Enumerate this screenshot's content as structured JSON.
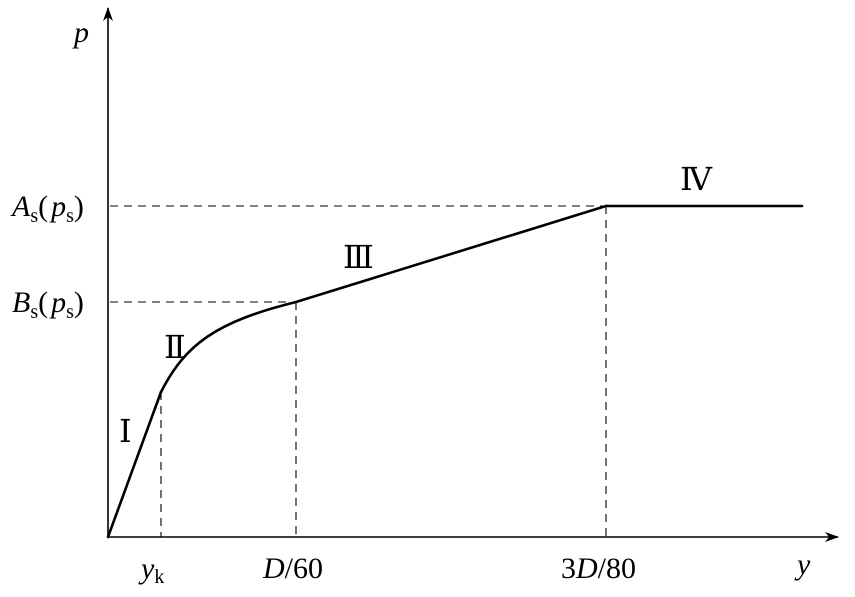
{
  "axes": {
    "y_axis_label": "p",
    "x_axis_label": "y"
  },
  "y_levels": {
    "a_main": "A",
    "a_sub": "s",
    "a_paren_open": "(",
    "a_p": "p",
    "a_p_sub": "s",
    "a_paren_close": ")",
    "b_main": "B",
    "b_sub": "s",
    "b_paren_open": "(",
    "b_p": "p",
    "b_p_sub": "s",
    "b_paren_close": ")"
  },
  "x_marks": {
    "yk_main": "y",
    "yk_sub": "k",
    "d60_d": "D",
    "d60_rest": "/60",
    "d80_pre": "3",
    "d80_d": "D",
    "d80_rest": "/80"
  },
  "stages": {
    "stage_1": "Ⅰ",
    "stage_2": "Ⅱ",
    "stage_3": "Ⅲ",
    "stage_4": "Ⅳ"
  }
}
